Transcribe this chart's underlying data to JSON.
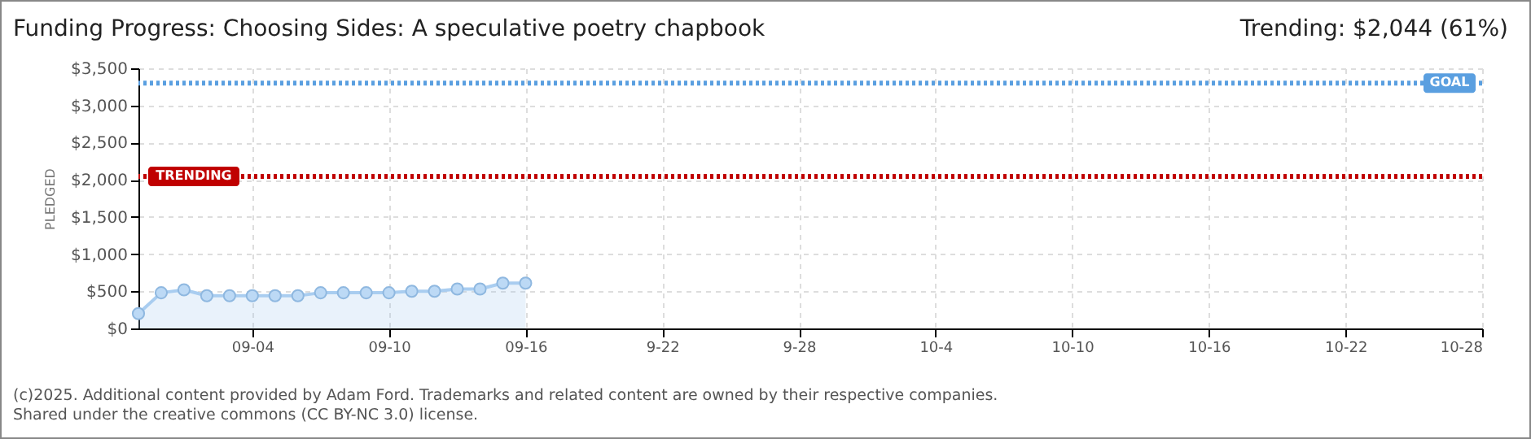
{
  "chart_data": {
    "type": "area",
    "title": "Funding Progress: Choosing Sides: A speculative poetry chapbook",
    "ylabel": "PLEDGED",
    "annotations": [
      "Trending: $2,044 (61%)",
      "(c)2025. Additional content provided by Adam Ford. Trademarks and related content are owned by their respective companies.",
      "Shared under the creative commons (CC BY-NC 3.0) license."
    ],
    "x": [
      "--08-30",
      "--08-31",
      "--09-01",
      "--09-02",
      "--09-03",
      "--09-04",
      "--09-05",
      "--09-06",
      "--09-07",
      "--09-08",
      "--09-09",
      "--09-10",
      "--09-11",
      "--09-12",
      "--09-13",
      "--09-14",
      "--09-15",
      "--09-16"
    ],
    "series": [
      {
        "color": "#a9cdf0",
        "values": [
          200,
          480,
          520,
          440,
          440,
          440,
          440,
          440,
          480,
          480,
          480,
          480,
          500,
          500,
          530,
          530,
          610,
          610
        ]
      }
    ],
    "xlim": [
      "--08-30",
      "--10-28"
    ],
    "xticks": [
      {
        "value": "--09-04",
        "label": "09-04"
      },
      {
        "value": "--09-10",
        "label": "09-10"
      },
      {
        "value": "--09-16",
        "label": "09-16"
      },
      {
        "value": "--09-22",
        "label": "9-22"
      },
      {
        "value": "--09-28",
        "label": "9-28"
      },
      {
        "value": "--10-04",
        "label": "10-4"
      },
      {
        "value": "--10-10",
        "label": "10-10"
      },
      {
        "value": "--10-16",
        "label": "10-16"
      },
      {
        "value": "--10-22",
        "label": "10-22"
      },
      {
        "value": "--10-28",
        "label": "10-28"
      }
    ],
    "ylim": [
      0,
      3500
    ],
    "yticks": [
      {
        "value": 0,
        "label": "$0"
      },
      {
        "value": 500,
        "label": "$500"
      },
      {
        "value": 1000,
        "label": "$1,000"
      },
      {
        "value": 1500,
        "label": "$1,500"
      },
      {
        "value": 2000,
        "label": "$2,000"
      },
      {
        "value": 2500,
        "label": "$2,500"
      },
      {
        "value": 3000,
        "label": "$3,000"
      },
      {
        "value": 3500,
        "label": "$3,500"
      }
    ],
    "ref_lines": [
      {
        "axis": "y",
        "value": 3300,
        "label": "GOAL",
        "color": "#5a9fe0",
        "line_style": "dotted"
      },
      {
        "axis": "y",
        "value": 2044,
        "label": "TRENDING",
        "color": "#c00000",
        "line_style": "dotted"
      }
    ],
    "grid": true,
    "marker": "circle",
    "line_style": "solid"
  }
}
